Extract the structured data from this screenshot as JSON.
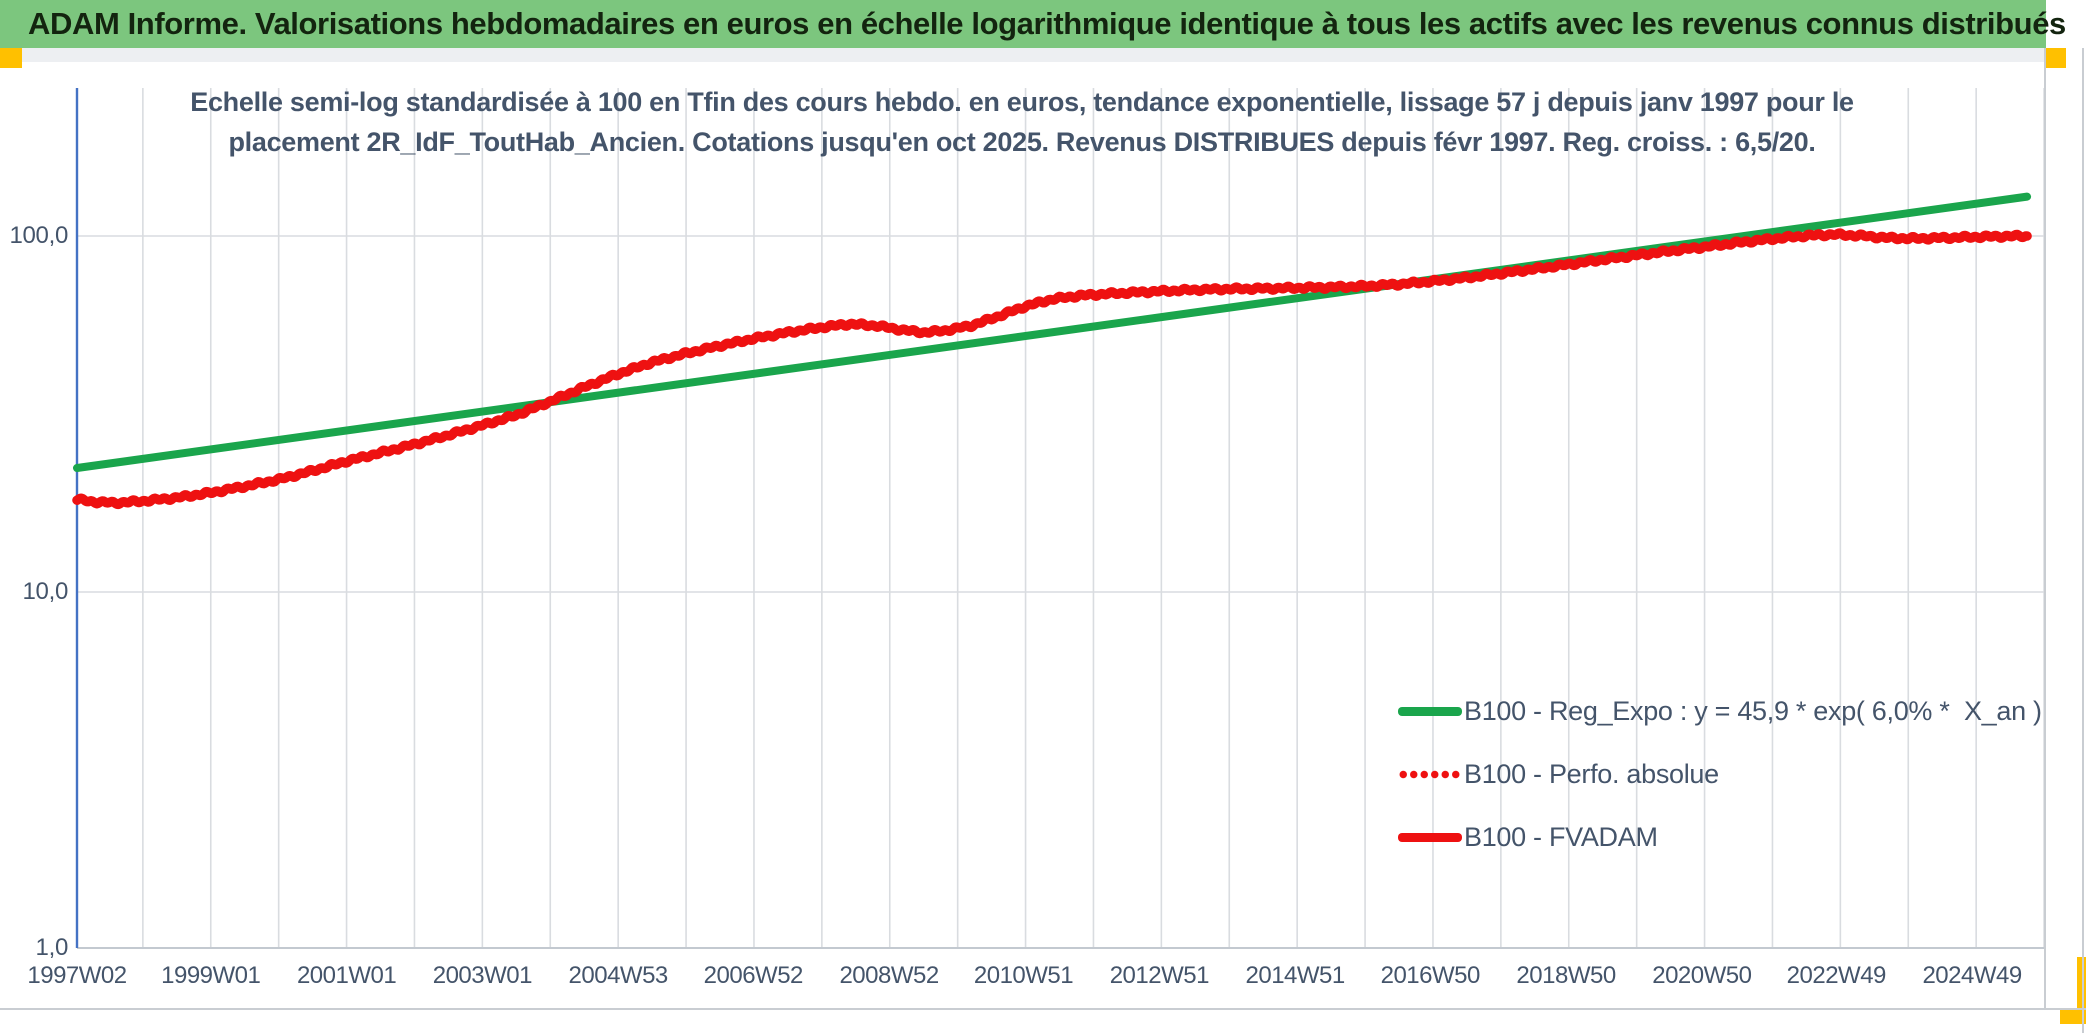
{
  "banner": {
    "title": "ADAM Informe. Valorisations hebdomadaires en euros en échelle logarithmique identique à tous les actifs avec les revenus connus distribués",
    "background": "#7CC67E",
    "text_color": "#13240F",
    "accent_yellow": "#FFC000"
  },
  "chart": {
    "title_line1": "Echelle semi-log standardisée à 100 en Tfin des cours hebdo. en euros, tendance exponentielle, lissage 57 j depuis janv 1997 pour le",
    "title_line2": "placement 2R_IdF_ToutHab_Ancien. Cotations jusqu'en oct 2025. Revenus DISTRIBUES depuis févr 1997. Reg. croiss. : 6,5/20.",
    "text_color": "#44546A",
    "gridline_color": "#D9DCE0",
    "axis_line_color": "#4472C4",
    "bottom_axis_color": "#C3C9D0"
  },
  "chart_data": {
    "type": "line",
    "title": "Echelle semi-log standardisée à 100 en Tfin des cours hebdo. en euros, tendance exponentielle, lissage 57 j depuis janv 1997 pour le placement 2R_IdF_ToutHab_Ancien. Cotations jusqu'en oct 2025. Revenus DISTRIBUES depuis févr 1997. Reg. croiss. : 6,5/20.",
    "y_scale": "log10",
    "y_ticks": [
      100.0,
      10.0,
      1.0
    ],
    "y_tick_labels": [
      "100,0",
      "10,0",
      "1,0"
    ],
    "ylim": [
      1.0,
      250.0
    ],
    "grid": "vertical-yearly",
    "legend_position": "inside-bottom-right",
    "x_ticks": [
      {
        "label": "1997W02",
        "year": 1997.03
      },
      {
        "label": "1999W01",
        "year": 1999.0
      },
      {
        "label": "2001W01",
        "year": 2001.0
      },
      {
        "label": "2003W01",
        "year": 2003.0
      },
      {
        "label": "2004W53",
        "year": 2005.0
      },
      {
        "label": "2006W52",
        "year": 2006.99
      },
      {
        "label": "2008W52",
        "year": 2008.99
      },
      {
        "label": "2010W51",
        "year": 2010.97
      },
      {
        "label": "2012W51",
        "year": 2012.97
      },
      {
        "label": "2014W51",
        "year": 2014.97
      },
      {
        "label": "2016W50",
        "year": 2016.96
      },
      {
        "label": "2018W50",
        "year": 2018.96
      },
      {
        "label": "2020W50",
        "year": 2020.96
      },
      {
        "label": "2022W49",
        "year": 2022.94
      },
      {
        "label": "2024W49",
        "year": 2024.94
      }
    ],
    "x_range_years": [
      1997.03,
      2025.75
    ],
    "series": [
      {
        "name": "B100 - Reg_Expo : y = 45,9 * exp( 6,0% *  X_an )",
        "color": "#1AA54C",
        "style": "solid",
        "points": [
          [
            1997.03,
            22.3
          ],
          [
            2025.75,
            129.0
          ]
        ]
      },
      {
        "name": "B100 - Perfo. absolue",
        "color": "#EE1111",
        "style": "dotted",
        "note": "coincides with B100 - FVADAM (revenus distribués)",
        "points": []
      },
      {
        "name": "B100 - FVADAM",
        "color": "#EE1111",
        "style": "solid",
        "points": [
          [
            1997.03,
            18.2
          ],
          [
            1997.3,
            17.9
          ],
          [
            1997.6,
            17.8
          ],
          [
            1998.0,
            18.0
          ],
          [
            1998.5,
            18.4
          ],
          [
            1999.0,
            19.0
          ],
          [
            1999.5,
            19.8
          ],
          [
            2000.0,
            20.7
          ],
          [
            2000.5,
            21.9
          ],
          [
            2001.0,
            23.3
          ],
          [
            2001.5,
            24.6
          ],
          [
            2002.0,
            26.0
          ],
          [
            2002.5,
            27.6
          ],
          [
            2003.0,
            29.4
          ],
          [
            2003.5,
            31.4
          ],
          [
            2004.0,
            34.3
          ],
          [
            2004.5,
            37.6
          ],
          [
            2005.0,
            41.0
          ],
          [
            2005.5,
            44.2
          ],
          [
            2006.0,
            46.8
          ],
          [
            2006.5,
            49.2
          ],
          [
            2007.0,
            51.5
          ],
          [
            2007.5,
            53.6
          ],
          [
            2008.0,
            55.4
          ],
          [
            2008.4,
            56.6
          ],
          [
            2008.8,
            56.0
          ],
          [
            2009.2,
            54.4
          ],
          [
            2009.5,
            53.6
          ],
          [
            2009.8,
            54.2
          ],
          [
            2010.2,
            56.0
          ],
          [
            2010.6,
            59.5
          ],
          [
            2011.0,
            63.5
          ],
          [
            2011.4,
            66.5
          ],
          [
            2011.8,
            68.0
          ],
          [
            2012.2,
            68.8
          ],
          [
            2012.6,
            69.4
          ],
          [
            2013.0,
            70.0
          ],
          [
            2013.5,
            70.6
          ],
          [
            2014.0,
            71.0
          ],
          [
            2014.5,
            71.2
          ],
          [
            2015.0,
            71.5
          ],
          [
            2015.5,
            71.8
          ],
          [
            2016.0,
            72.3
          ],
          [
            2016.5,
            73.2
          ],
          [
            2017.0,
            74.6
          ],
          [
            2017.5,
            76.4
          ],
          [
            2018.0,
            78.5
          ],
          [
            2018.5,
            80.8
          ],
          [
            2019.0,
            83.2
          ],
          [
            2019.5,
            85.8
          ],
          [
            2020.0,
            88.3
          ],
          [
            2020.5,
            90.8
          ],
          [
            2021.0,
            93.2
          ],
          [
            2021.5,
            95.8
          ],
          [
            2022.0,
            98.2
          ],
          [
            2022.5,
            100.2
          ],
          [
            2022.9,
            101.0
          ],
          [
            2023.3,
            100.2
          ],
          [
            2023.7,
            98.8
          ],
          [
            2024.1,
            98.4
          ],
          [
            2024.5,
            98.8
          ],
          [
            2025.0,
            99.4
          ],
          [
            2025.4,
            99.8
          ],
          [
            2025.75,
            100.0
          ]
        ]
      }
    ]
  }
}
